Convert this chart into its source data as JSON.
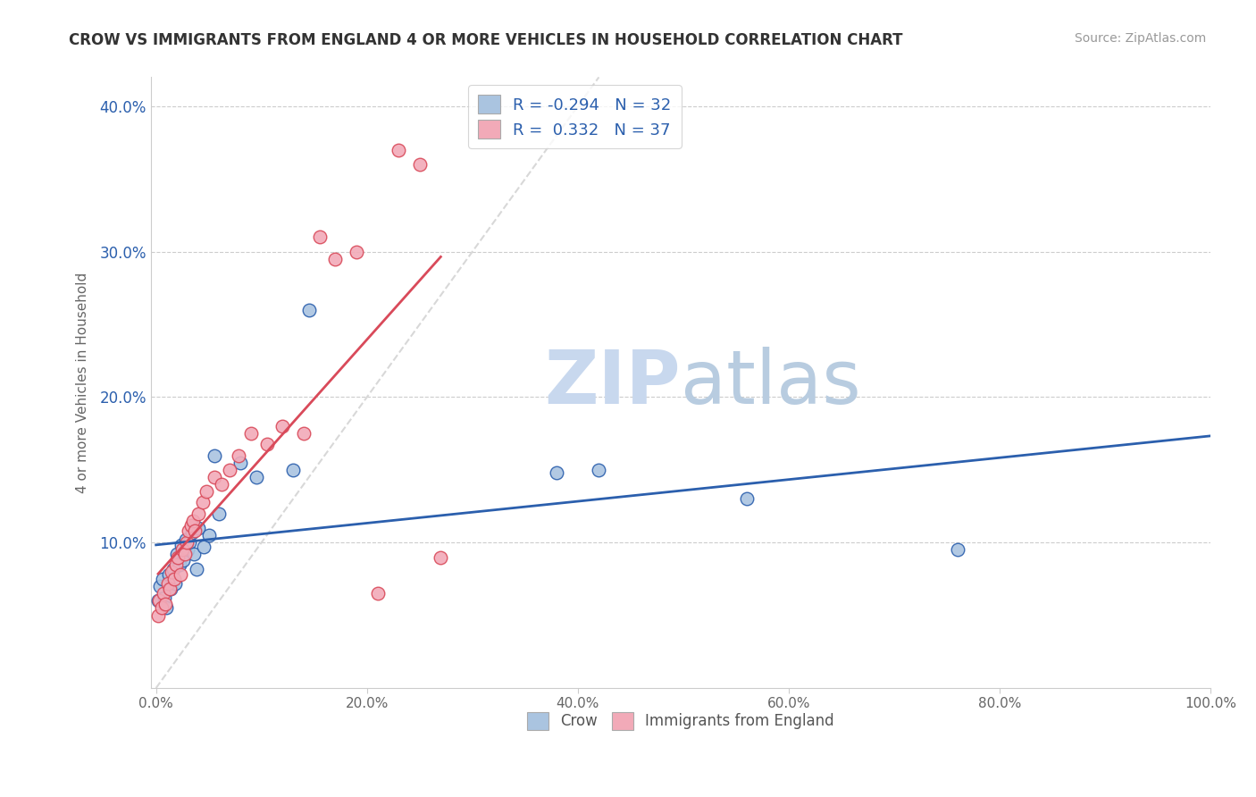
{
  "title": "CROW VS IMMIGRANTS FROM ENGLAND 4 OR MORE VEHICLES IN HOUSEHOLD CORRELATION CHART",
  "source": "Source: ZipAtlas.com",
  "ylabel": "4 or more Vehicles in Household",
  "legend_label1": "Crow",
  "legend_label2": "Immigrants from England",
  "R1": -0.294,
  "N1": 32,
  "R2": 0.332,
  "N2": 37,
  "xlim": [
    -0.005,
    1.0
  ],
  "ylim": [
    0.0,
    0.42
  ],
  "xticks": [
    0.0,
    0.2,
    0.4,
    0.6,
    0.8,
    1.0
  ],
  "yticks": [
    0.1,
    0.2,
    0.3,
    0.4
  ],
  "xtick_labels": [
    "0.0%",
    "20.0%",
    "40.0%",
    "60.0%",
    "80.0%",
    "100.0%"
  ],
  "ytick_labels": [
    "10.0%",
    "20.0%",
    "30.0%",
    "40.0%"
  ],
  "color1": "#aac4e0",
  "color2": "#f2aab8",
  "line_color1": "#2b5fad",
  "line_color2": "#d94a5a",
  "watermark_zip": "ZIP",
  "watermark_atlas": "atlas",
  "background_color": "#ffffff",
  "grid_color": "#cccccc",
  "scatter1_x": [
    0.002,
    0.004,
    0.006,
    0.008,
    0.01,
    0.012,
    0.014,
    0.016,
    0.018,
    0.02,
    0.022,
    0.024,
    0.026,
    0.028,
    0.03,
    0.032,
    0.034,
    0.036,
    0.038,
    0.04,
    0.045,
    0.05,
    0.055,
    0.06,
    0.08,
    0.095,
    0.13,
    0.145,
    0.38,
    0.42,
    0.56,
    0.76
  ],
  "scatter1_y": [
    0.06,
    0.07,
    0.075,
    0.062,
    0.055,
    0.078,
    0.068,
    0.082,
    0.072,
    0.092,
    0.085,
    0.098,
    0.088,
    0.102,
    0.095,
    0.1,
    0.107,
    0.092,
    0.082,
    0.11,
    0.097,
    0.105,
    0.16,
    0.12,
    0.155,
    0.145,
    0.15,
    0.26,
    0.148,
    0.15,
    0.13,
    0.095
  ],
  "scatter2_x": [
    0.002,
    0.003,
    0.005,
    0.007,
    0.009,
    0.011,
    0.013,
    0.015,
    0.017,
    0.019,
    0.021,
    0.023,
    0.025,
    0.027,
    0.029,
    0.031,
    0.033,
    0.035,
    0.037,
    0.04,
    0.044,
    0.048,
    0.055,
    0.062,
    0.07,
    0.078,
    0.09,
    0.105,
    0.12,
    0.14,
    0.155,
    0.17,
    0.19,
    0.21,
    0.23,
    0.25,
    0.27
  ],
  "scatter2_y": [
    0.05,
    0.06,
    0.055,
    0.065,
    0.058,
    0.072,
    0.068,
    0.08,
    0.075,
    0.085,
    0.09,
    0.078,
    0.095,
    0.092,
    0.1,
    0.108,
    0.112,
    0.115,
    0.108,
    0.12,
    0.128,
    0.135,
    0.145,
    0.14,
    0.15,
    0.16,
    0.175,
    0.168,
    0.18,
    0.175,
    0.31,
    0.295,
    0.3,
    0.065,
    0.37,
    0.36,
    0.09
  ],
  "ref_line_x": [
    0.0,
    0.42
  ],
  "ref_line_y": [
    0.0,
    0.42
  ]
}
